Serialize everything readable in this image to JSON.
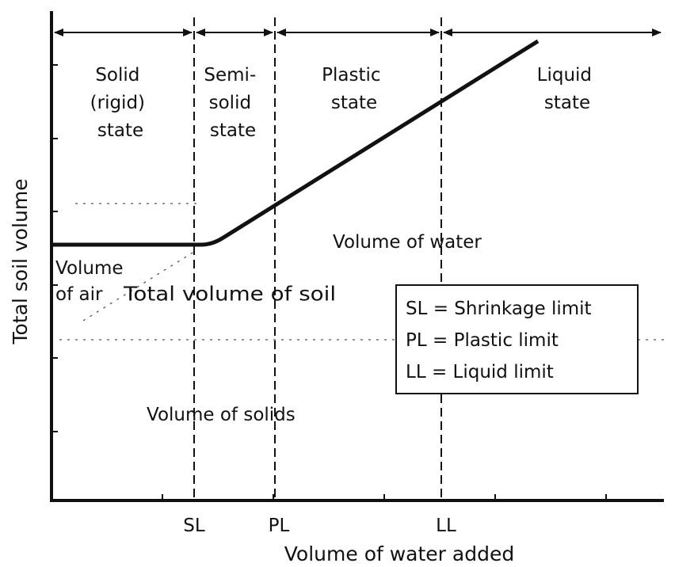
{
  "axes": {
    "y_label": "Total soil volume",
    "x_label": "Volume of water added",
    "x_ticks": [
      "SL",
      "PL",
      "LL"
    ]
  },
  "states": {
    "solid": [
      "Solid",
      "(rigid)",
      "state"
    ],
    "semisolid": [
      "Semi-",
      "solid",
      "state"
    ],
    "plastic": [
      "Plastic",
      "state"
    ],
    "liquid": [
      "Liquid",
      "state"
    ]
  },
  "regions": {
    "total_volume": "Total volume of soil",
    "water": "Volume of water",
    "air": [
      "Volume",
      "of air"
    ],
    "solids": "Volume of solids"
  },
  "legend": [
    "SL = Shrinkage limit",
    "PL = Plastic limit",
    "LL = Liquid limit"
  ]
}
